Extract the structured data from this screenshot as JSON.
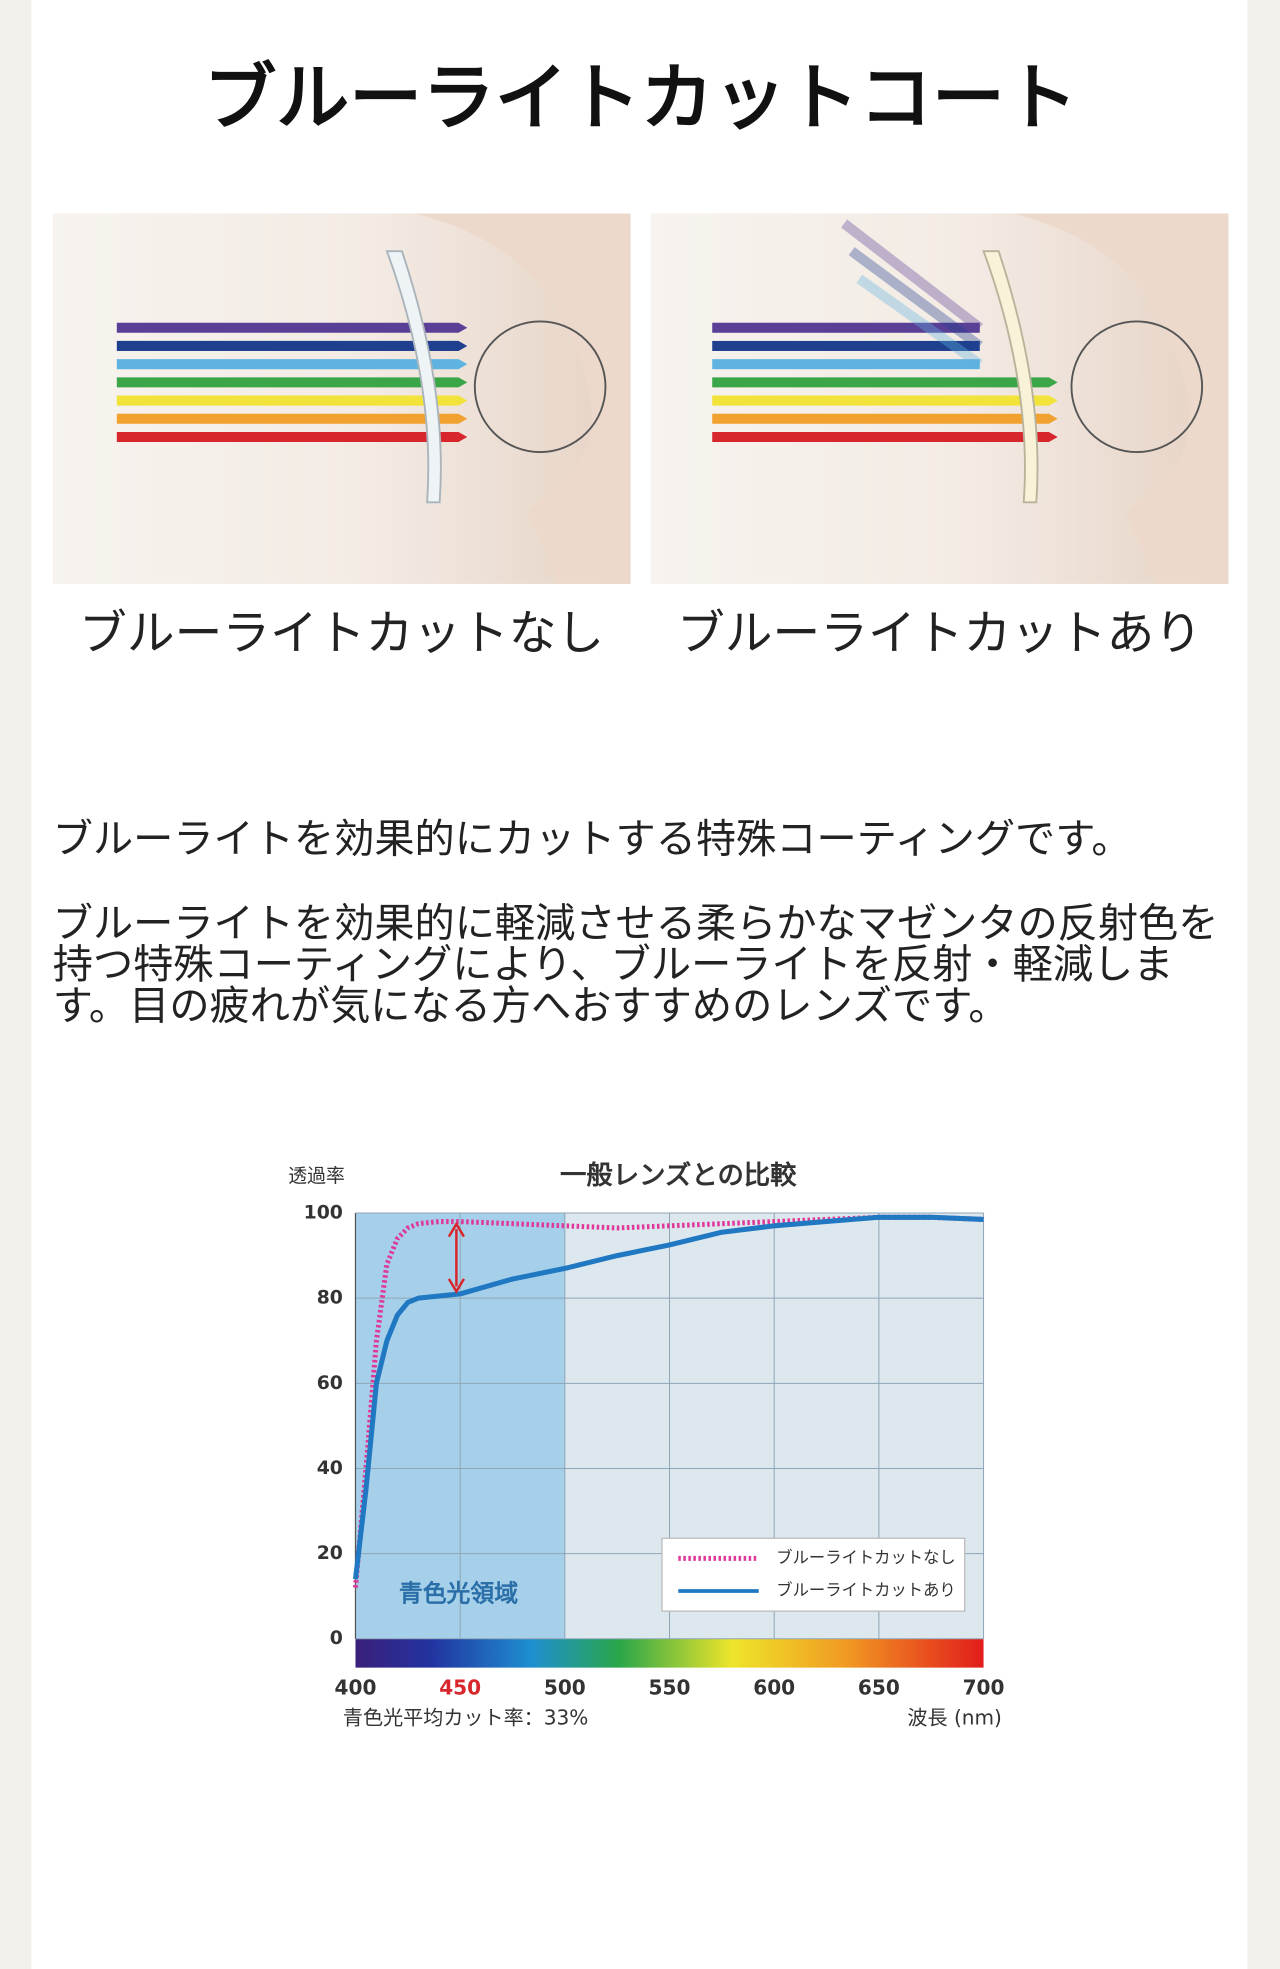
{
  "title": "ブルーライトカットコート",
  "images": [
    {
      "caption": "ブルーライトカットなし"
    },
    {
      "caption": "ブルーライトカットあり"
    }
  ],
  "paragraphs": [
    "ブルーライトを効果的にカットする特殊コーティングです。",
    "ブルーライトを効果的に軽減させる柔らかなマゼンタの反射色を持つ特殊コーティングにより、ブルーライトを反射・軽減します。目の疲れが気になる方へおすすめのレンズです。"
  ],
  "chart_data": {
    "type": "line",
    "title": "一般レンズとの比較",
    "y_label": "透過率",
    "x_label": "波長 (nm)",
    "note": "青色光平均カット率：33%",
    "region_label": "青色光領域",
    "highlight_range": [
      400,
      500
    ],
    "x": [
      400,
      405,
      410,
      415,
      420,
      425,
      430,
      440,
      450,
      475,
      500,
      525,
      550,
      575,
      600,
      625,
      650,
      675,
      700
    ],
    "series": [
      {
        "name": "ブルーライトカットなし",
        "color": "#e0389a",
        "dotted": true,
        "values": [
          12,
          40,
          70,
          88,
          94,
          96.5,
          97.5,
          98,
          98,
          97.5,
          97,
          96.5,
          97,
          97.5,
          98,
          98.5,
          99,
          99,
          98.5
        ]
      },
      {
        "name": "ブルーライトカットあり",
        "color": "#1f78c1",
        "dotted": false,
        "values": [
          14,
          35,
          60,
          70,
          76,
          79,
          80,
          80.5,
          81,
          84.5,
          87,
          90,
          92.5,
          95.5,
          97,
          98,
          99,
          99,
          98.5
        ]
      }
    ],
    "xlim": [
      400,
      700
    ],
    "xticks": [
      400,
      450,
      500,
      550,
      600,
      650,
      700
    ],
    "ylim": [
      0,
      100
    ],
    "yticks": [
      0,
      20,
      40,
      60,
      80,
      100
    ],
    "grid": true
  }
}
